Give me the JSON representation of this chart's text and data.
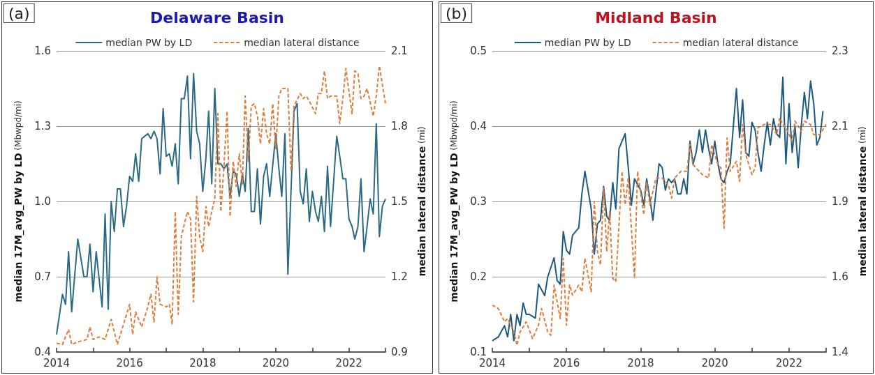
{
  "chart_data": [
    {
      "type": "line",
      "title": "Delaware Basin",
      "annotations": [
        "(a)"
      ],
      "ylabel": "median 17M_avg_PW by LD (Mbwpd/mi)",
      "y2label": "median lateral distance (mi)",
      "xlim": [
        "2014-01",
        "2023-01"
      ],
      "xticks": [
        "2014",
        {
          "value": "2015",
          "label": null
        },
        "2016",
        {
          "value": "2017",
          "label": null
        },
        "2018",
        {
          "value": "2019",
          "label": null
        },
        "2020",
        {
          "value": "2021",
          "label": null
        },
        "2022",
        {
          "value": "2023",
          "label": null
        }
      ],
      "ylim": [
        0.4,
        1.6
      ],
      "yticks": [
        0.4,
        0.7,
        {
          "value": 1.0,
          "label": "1.0"
        },
        1.3,
        1.6
      ],
      "y2lim": [
        0.9,
        2.1
      ],
      "y2ticks": [
        0.9,
        1.2,
        1.5,
        1.8,
        2.1
      ],
      "grid": "y",
      "legend": "top",
      "marker": "none",
      "series": [
        {
          "name": "median PW by LD",
          "color": "#2a6a84",
          "line_style": "solid",
          "x": [
            "2014-01",
            "2014-03",
            "2014-04",
            "2014-05",
            "2014-06",
            "2014-08",
            "2014-10",
            "2014-11",
            "2014-12",
            "2015-01",
            "2015-02",
            "2015-04",
            "2015-05",
            "2015-06",
            "2015-07",
            "2015-08",
            "2015-09",
            "2015-10",
            "2015-11",
            "2015-12",
            "2016-01",
            "2016-02",
            "2016-03",
            "2016-04",
            "2016-05",
            "2016-07",
            "2016-08",
            "2016-09",
            "2016-10",
            "2016-11",
            "2016-12",
            "2017-01",
            "2017-02",
            "2017-03",
            "2017-04",
            "2017-05",
            "2017-06",
            "2017-07",
            "2017-08",
            "2017-09",
            "2017-10",
            "2017-11",
            "2017-12",
            "2018-01",
            "2018-02",
            "2018-03",
            "2018-04",
            "2018-05",
            "2018-06",
            "2018-07",
            "2018-08",
            "2018-09",
            "2018-10",
            "2018-11",
            "2018-12",
            "2019-01",
            "2019-02",
            "2019-03",
            "2019-04",
            "2019-05",
            "2019-06",
            "2019-07",
            "2019-08",
            "2019-09",
            "2019-10",
            "2019-11",
            "2020-01",
            "2020-02",
            "2020-03",
            "2020-04",
            "2020-05",
            "2020-07",
            "2020-08",
            "2020-09",
            "2020-10",
            "2020-11",
            "2020-12",
            "2021-01",
            "2021-02",
            "2021-03",
            "2021-04",
            "2021-05",
            "2021-06",
            "2021-07",
            "2021-08",
            "2021-09",
            "2021-10",
            "2021-11",
            "2021-12",
            "2022-01",
            "2022-02",
            "2022-03",
            "2022-04",
            "2022-05",
            "2022-06",
            "2022-07",
            "2022-08",
            "2022-09",
            "2022-10",
            "2022-11",
            "2022-12",
            "2023-01"
          ],
          "values": [
            0.47,
            0.63,
            0.59,
            0.8,
            0.56,
            0.85,
            0.7,
            0.7,
            0.83,
            0.64,
            0.8,
            0.58,
            0.95,
            0.57,
            1.0,
            0.88,
            1.05,
            1.05,
            0.9,
            0.98,
            1.1,
            1.08,
            1.19,
            1.08,
            1.25,
            1.27,
            1.25,
            1.28,
            1.25,
            1.11,
            1.37,
            1.18,
            1.19,
            1.14,
            1.23,
            1.07,
            1.41,
            1.41,
            1.5,
            1.17,
            1.51,
            1.28,
            1.23,
            1.04,
            1.17,
            1.36,
            1.07,
            1.45,
            1.15,
            1.15,
            1.13,
            1.15,
            1.02,
            1.12,
            1.11,
            1.02,
            1.11,
            1.04,
            1.29,
            0.96,
            0.96,
            1.13,
            0.91,
            1.1,
            1.15,
            1.02,
            1.27,
            1.13,
            1.02,
            1.27,
            0.71,
            1.36,
            1.39,
            1.04,
            0.99,
            1.13,
            0.92,
            1.04,
            0.96,
            0.92,
            1.02,
            0.88,
            1.14,
            0.9,
            1.08,
            1.26,
            1.18,
            1.09,
            1.09,
            0.93,
            0.9,
            0.85,
            0.9,
            1.09,
            0.8,
            0.9,
            1.01,
            0.95,
            1.31,
            0.86,
            0.98,
            1.01
          ]
        },
        {
          "name": "median lateral distance",
          "color": "#e07b39",
          "line_style": "dashed",
          "axis": "y2",
          "x": [
            "2014-01",
            "2014-03",
            "2014-05",
            "2014-06",
            "2014-08",
            "2014-11",
            "2014-12",
            "2015-01",
            "2015-03",
            "2015-05",
            "2015-07",
            "2015-09",
            "2015-11",
            "2016-01",
            "2016-02",
            "2016-03",
            "2016-05",
            "2016-07",
            "2016-08",
            "2016-09",
            "2016-10",
            "2016-11",
            "2017-01",
            "2017-02",
            "2017-03",
            "2017-04",
            "2017-05",
            "2017-06",
            "2017-07",
            "2017-08",
            "2017-09",
            "2017-10",
            "2017-11",
            "2017-12",
            "2018-01",
            "2018-02",
            "2018-03",
            "2018-04",
            "2018-05",
            "2018-06",
            "2018-07",
            "2018-08",
            "2018-09",
            "2018-10",
            "2018-11",
            "2018-12",
            "2019-01",
            "2019-02",
            "2019-03",
            "2019-04",
            "2019-05",
            "2019-06",
            "2019-07",
            "2019-08",
            "2019-09",
            "2019-10",
            "2019-11",
            "2019-12",
            "2020-01",
            "2020-02",
            "2020-03",
            "2020-04",
            "2020-05",
            "2020-06",
            "2020-07",
            "2020-09",
            "2020-10",
            "2020-11",
            "2020-12",
            "2021-02",
            "2021-03",
            "2021-04",
            "2021-05",
            "2021-06",
            "2021-07",
            "2021-08",
            "2021-09",
            "2021-10",
            "2021-11",
            "2021-12",
            "2022-02",
            "2022-03",
            "2022-04",
            "2022-05",
            "2022-06",
            "2022-07",
            "2022-09",
            "2022-10",
            "2022-11",
            "2023-01"
          ],
          "values": [
            0.935,
            0.93,
            0.99,
            0.93,
            0.94,
            0.95,
            1.0,
            0.95,
            0.96,
            0.95,
            1.03,
            0.93,
            1.01,
            1.09,
            0.97,
            1.06,
            1.0,
            1.08,
            1.13,
            1.02,
            1.2,
            1.09,
            1.08,
            1.09,
            1.01,
            1.46,
            1.05,
            1.36,
            1.41,
            1.46,
            1.43,
            1.1,
            1.52,
            1.36,
            1.3,
            1.48,
            1.4,
            1.46,
            1.51,
            1.85,
            1.46,
            1.64,
            1.86,
            1.44,
            1.66,
            1.56,
            1.69,
            1.57,
            1.92,
            1.66,
            1.88,
            1.89,
            1.84,
            1.73,
            1.87,
            1.77,
            1.73,
            1.89,
            1.71,
            1.92,
            1.95,
            1.95,
            1.95,
            1.62,
            1.88,
            1.93,
            1.91,
            1.92,
            1.9,
            1.85,
            1.93,
            1.93,
            2.02,
            1.91,
            1.92,
            1.92,
            1.92,
            1.81,
            1.91,
            2.03,
            1.85,
            2.02,
            2.01,
            1.91,
            1.92,
            1.95,
            1.84,
            1.92,
            2.04,
            1.89
          ]
        }
      ]
    },
    {
      "type": "line",
      "title": "Midland Basin",
      "annotations": [
        "(b)"
      ],
      "ylabel": "median 17M_avg_PW by LD (Mbwpd/mi)",
      "y2label": "median lateral distance (mi)",
      "xlim": [
        "2014-01",
        "2023-01"
      ],
      "xticks": [
        "2014",
        {
          "value": "2015",
          "label": null
        },
        "2016",
        {
          "value": "2017",
          "label": null
        },
        "2018",
        {
          "value": "2019",
          "label": null
        },
        "2020",
        {
          "value": "2021",
          "label": null
        },
        "2022",
        {
          "value": "2023",
          "label": null
        }
      ],
      "ylim": [
        0.1,
        0.5
      ],
      "yticks": [
        0.1,
        0.2,
        0.3,
        0.4,
        0.5
      ],
      "y2lim": [
        1.4,
        2.3
      ],
      "y2ticks": [
        1.4,
        {
          "value": 1.625,
          "label": "1.6"
        },
        {
          "value": 1.85,
          "label": "1.9"
        },
        {
          "value": 2.075,
          "label": "2.1"
        },
        2.3
      ],
      "grid": "y",
      "legend": "top",
      "marker": "none",
      "series": [
        {
          "name": "median PW by LD",
          "color": "#1d5a80",
          "line_style": "solid",
          "x": [
            "2014-01",
            "2014-03",
            "2014-05",
            "2014-06",
            "2014-07",
            "2014-08",
            "2014-09",
            "2014-10",
            "2014-11",
            "2014-12",
            "2015-01",
            "2015-03",
            "2015-04",
            "2015-06",
            "2015-07",
            "2015-09",
            "2015-10",
            "2015-11",
            "2015-12",
            "2016-01",
            "2016-02",
            "2016-03",
            "2016-04",
            "2016-05",
            "2016-06",
            "2016-07",
            "2016-09",
            "2016-10",
            "2016-11",
            "2016-12",
            "2017-01",
            "2017-02",
            "2017-03",
            "2017-04",
            "2017-05",
            "2017-06",
            "2017-08",
            "2017-09",
            "2017-10",
            "2017-11",
            "2018-01",
            "2018-02",
            "2018-03",
            "2018-04",
            "2018-05",
            "2018-07",
            "2018-08",
            "2018-09",
            "2018-10",
            "2018-11",
            "2018-12",
            "2019-01",
            "2019-02",
            "2019-03",
            "2019-04",
            "2019-05",
            "2019-06",
            "2019-07",
            "2019-08",
            "2019-09",
            "2019-10",
            "2019-11",
            "2019-12",
            "2020-01",
            "2020-02",
            "2020-03",
            "2020-04",
            "2020-05",
            "2020-06",
            "2020-08",
            "2020-09",
            "2020-10",
            "2020-11",
            "2020-12",
            "2021-01",
            "2021-02",
            "2021-03",
            "2021-04",
            "2021-05",
            "2021-06",
            "2021-07",
            "2021-08",
            "2021-09",
            "2021-10",
            "2021-11",
            "2021-12",
            "2022-01",
            "2022-02",
            "2022-03",
            "2022-04",
            "2022-05",
            "2022-06",
            "2022-07",
            "2022-08",
            "2022-09",
            "2022-10",
            "2022-11",
            "2022-12"
          ],
          "values": [
            0.115,
            0.12,
            0.135,
            0.12,
            0.15,
            0.115,
            0.15,
            0.135,
            0.165,
            0.15,
            0.15,
            0.145,
            0.19,
            0.175,
            0.2,
            0.225,
            0.195,
            0.19,
            0.26,
            0.235,
            0.23,
            0.255,
            0.26,
            0.265,
            0.31,
            0.34,
            0.29,
            0.23,
            0.27,
            0.275,
            0.32,
            0.28,
            0.275,
            0.325,
            0.29,
            0.37,
            0.39,
            0.345,
            0.295,
            0.33,
            0.315,
            0.295,
            0.33,
            0.305,
            0.275,
            0.35,
            0.345,
            0.315,
            0.33,
            0.325,
            0.33,
            0.31,
            0.31,
            0.33,
            0.31,
            0.38,
            0.35,
            0.365,
            0.395,
            0.365,
            0.395,
            0.37,
            0.35,
            0.38,
            0.35,
            0.33,
            0.325,
            0.34,
            0.35,
            0.45,
            0.385,
            0.435,
            0.365,
            0.36,
            0.405,
            0.395,
            0.365,
            0.34,
            0.375,
            0.405,
            0.375,
            0.41,
            0.39,
            0.385,
            0.465,
            0.35,
            0.43,
            0.365,
            0.4,
            0.345,
            0.4,
            0.445,
            0.41,
            0.46,
            0.43,
            0.375,
            0.385,
            0.42
          ]
        },
        {
          "name": "median lateral distance",
          "color": "#e07b39",
          "line_style": "dashed",
          "axis": "y2",
          "x": [
            "2014-01",
            "2014-03",
            "2014-05",
            "2014-06",
            "2014-08",
            "2014-09",
            "2014-10",
            "2014-12",
            "2015-02",
            "2015-04",
            "2015-05",
            "2015-07",
            "2015-08",
            "2015-09",
            "2015-11",
            "2015-12",
            "2016-01",
            "2016-02",
            "2016-03",
            "2016-05",
            "2016-06",
            "2016-07",
            "2016-09",
            "2016-10",
            "2016-11",
            "2016-12",
            "2017-01",
            "2017-02",
            "2017-03",
            "2017-04",
            "2017-05",
            "2017-07",
            "2017-08",
            "2017-09",
            "2017-11",
            "2017-12",
            "2018-02",
            "2018-03",
            "2018-04",
            "2018-06",
            "2018-08",
            "2018-10",
            "2018-11",
            "2018-12",
            "2019-02",
            "2019-04",
            "2019-05",
            "2019-06",
            "2019-08",
            "2019-09",
            "2019-11",
            "2019-12",
            "2020-02",
            "2020-03",
            "2020-04",
            "2020-05",
            "2020-06",
            "2020-08",
            "2020-09",
            "2020-10",
            "2020-11",
            "2021-01",
            "2021-02",
            "2021-03",
            "2021-05",
            "2021-07",
            "2021-09",
            "2021-10",
            "2021-11",
            "2021-12",
            "2022-02",
            "2022-03",
            "2022-05",
            "2022-06",
            "2022-08",
            "2022-09",
            "2022-11",
            "2023-01"
          ],
          "values": [
            1.54,
            1.53,
            1.49,
            1.5,
            1.46,
            1.42,
            1.46,
            1.49,
            1.44,
            1.48,
            1.53,
            1.46,
            1.45,
            1.6,
            1.5,
            1.68,
            1.48,
            1.6,
            1.57,
            1.6,
            1.58,
            1.68,
            1.58,
            1.85,
            1.7,
            1.66,
            1.89,
            1.7,
            1.82,
            1.62,
            1.61,
            1.94,
            1.84,
            1.92,
            1.62,
            1.94,
            1.81,
            1.91,
            1.84,
            1.92,
            1.92,
            1.9,
            1.86,
            1.92,
            1.94,
            1.94,
            2.02,
            1.96,
            1.94,
            1.93,
            1.92,
            2.02,
            1.96,
            1.95,
            1.77,
            2.04,
            1.94,
            1.97,
            1.91,
            2.08,
            1.99,
            1.93,
            1.95,
            2.07,
            2.08,
            2.08,
            2.05,
            2.1,
            2.08,
            2.07,
            2.03,
            2.09,
            2.06,
            2.09,
            2.08,
            2.05,
            2.05,
            2.08
          ]
        }
      ]
    }
  ]
}
